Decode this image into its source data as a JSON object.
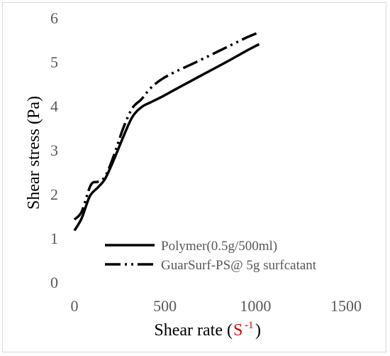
{
  "chart_data": {
    "type": "line",
    "xlabel": "Shear rate (",
    "xlabel_unit_base": "S",
    "xlabel_unit_sup": "-1",
    "xlabel_close": ")",
    "ylabel": "Shear stress (Pa)",
    "xlim": [
      0,
      1500
    ],
    "ylim": [
      0,
      6
    ],
    "x_ticks": [
      "0",
      "500",
      "1000",
      "1500"
    ],
    "y_ticks": [
      "0",
      "1",
      "2",
      "3",
      "4",
      "5",
      "6"
    ],
    "grid": false,
    "legend_position": "bottom-right",
    "series": [
      {
        "name": "Polymer(0.5g/500ml)",
        "style": "solid",
        "color": "#000000",
        "x": [
          0,
          40,
          85,
          130,
          170,
          220,
          270,
          320,
          370,
          420,
          480,
          560,
          650,
          750,
          850,
          950,
          1020
        ],
        "y": [
          1.17,
          1.45,
          1.95,
          2.15,
          2.35,
          2.8,
          3.3,
          3.75,
          3.97,
          4.08,
          4.2,
          4.38,
          4.58,
          4.8,
          5.02,
          5.25,
          5.4
        ]
      },
      {
        "name": "GuarSurf-PS@ 5g surfcatant",
        "style": "dash-dot-dot",
        "color": "#000000",
        "x": [
          0,
          40,
          90,
          130,
          170,
          220,
          270,
          320,
          370,
          420,
          480,
          560,
          650,
          750,
          850,
          950,
          1020
        ],
        "y": [
          1.42,
          1.6,
          2.2,
          2.28,
          2.4,
          2.9,
          3.5,
          3.95,
          4.15,
          4.4,
          4.6,
          4.78,
          4.95,
          5.15,
          5.35,
          5.55,
          5.67
        ]
      }
    ]
  }
}
